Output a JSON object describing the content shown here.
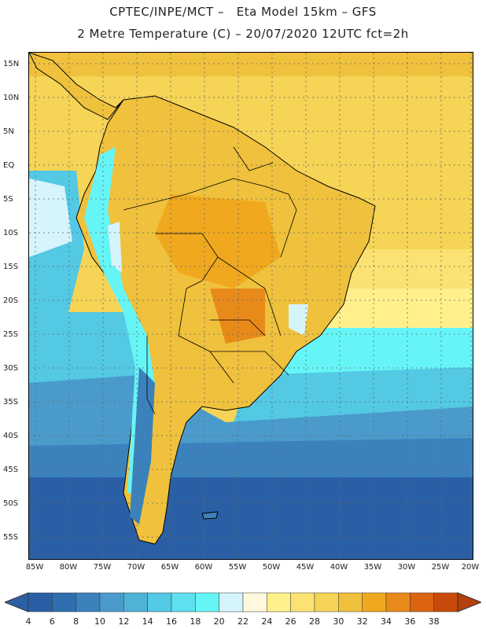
{
  "title": {
    "line1": "CPTEC/INPE/MCT –   Eta Model 15km – GFS",
    "line2": "2 Metre Temperature (C) – 20/07/2020 12UTC fct=2h"
  },
  "lat_labels": [
    "15N",
    "10N",
    "5N",
    "EQ",
    "5S",
    "10S",
    "15S",
    "20S",
    "25S",
    "30S",
    "35S",
    "40S",
    "45S",
    "50S",
    "55S"
  ],
  "lon_labels": [
    "85W",
    "80W",
    "75W",
    "70W",
    "65W",
    "60W",
    "55W",
    "50W",
    "45W",
    "40W",
    "35W",
    "30W",
    "25W",
    "20W"
  ],
  "colorbar": {
    "labels": [
      "4",
      "6",
      "8",
      "10",
      "12",
      "14",
      "16",
      "18",
      "20",
      "22",
      "24",
      "26",
      "28",
      "30",
      "32",
      "34",
      "36",
      "38"
    ],
    "colors": [
      "#2a5fa5",
      "#2f6fb0",
      "#3b82bd",
      "#4a9bcc",
      "#4fb3d8",
      "#53c9e4",
      "#5ee0ee",
      "#66f5f7",
      "#d6f4fb",
      "#fff8dc",
      "#fff08c",
      "#fbe272",
      "#f5d456",
      "#efc13c",
      "#f0a81e",
      "#e88a1a",
      "#dc6410",
      "#c84a0a"
    ],
    "low_color": "#2d5fa3",
    "high_color": "#b5400c"
  },
  "colors": {
    "ocean_far_south": "#2a5fa5",
    "land_warm": "#efc13c",
    "land_hot": "#f0a81e",
    "ocean_tropical": "#f5d456",
    "grid": "#666666",
    "coast": "#000000"
  }
}
